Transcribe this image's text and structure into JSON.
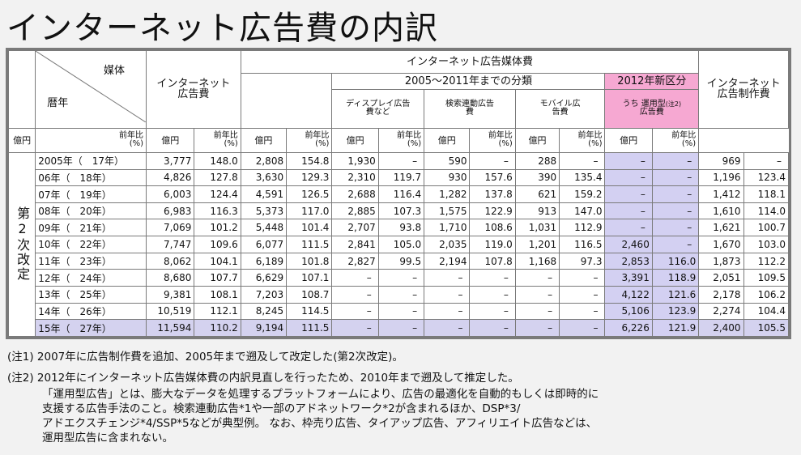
{
  "title": "インターネット広告費の内訳",
  "headers": {
    "media": "媒体",
    "year": "暦年",
    "internet_total": "インターネット広告費",
    "media_group": "インターネット広告媒体費",
    "period_group": "2005〜2011年までの分類",
    "new_group": "2012年新区分",
    "display": "ディスプレイ広告費など",
    "search": "検索連動広告費",
    "mobile": "モバイル広告費",
    "unyou": "うち 運用型",
    "unyou_note": "(注2)",
    "unyou_suffix": "広告費",
    "production": "インターネット広告制作費",
    "unit_oku": "億円",
    "unit_yoy": "前年比",
    "unit_pct": "(%)",
    "revision": "第2次改定"
  },
  "chart_data": {
    "type": "table",
    "columns": [
      "インターネット広告費 億円",
      "前年比(%)",
      "インターネット広告媒体費 億円",
      "前年比(%)",
      "ディスプレイ広告費など 億円",
      "前年比(%)",
      "検索連動広告費 億円",
      "前年比(%)",
      "モバイル広告費 億円",
      "前年比(%)",
      "うち運用型広告費 億円",
      "前年比(%)",
      "インターネット広告制作費 億円",
      "前年比(%)"
    ],
    "rows": [
      {
        "year": "2005年（　17年）",
        "values": [
          "3,777",
          "148.0",
          "2,808",
          "154.8",
          "1,930",
          "–",
          "590",
          "–",
          "288",
          "–",
          "–",
          "–",
          "969",
          "–"
        ]
      },
      {
        "year": "06年（　18年）",
        "values": [
          "4,826",
          "127.8",
          "3,630",
          "129.3",
          "2,310",
          "119.7",
          "930",
          "157.6",
          "390",
          "135.4",
          "–",
          "–",
          "1,196",
          "123.4"
        ]
      },
      {
        "year": "07年（　19年）",
        "values": [
          "6,003",
          "124.4",
          "4,591",
          "126.5",
          "2,688",
          "116.4",
          "1,282",
          "137.8",
          "621",
          "159.2",
          "–",
          "–",
          "1,412",
          "118.1"
        ]
      },
      {
        "year": "08年（　20年）",
        "values": [
          "6,983",
          "116.3",
          "5,373",
          "117.0",
          "2,885",
          "107.3",
          "1,575",
          "122.9",
          "913",
          "147.0",
          "–",
          "–",
          "1,610",
          "114.0"
        ]
      },
      {
        "year": "09年（　21年）",
        "values": [
          "7,069",
          "101.2",
          "5,448",
          "101.4",
          "2,707",
          "93.8",
          "1,710",
          "108.6",
          "1,031",
          "112.9",
          "–",
          "–",
          "1,621",
          "100.7"
        ]
      },
      {
        "year": "10年（　22年）",
        "values": [
          "7,747",
          "109.6",
          "6,077",
          "111.5",
          "2,841",
          "105.0",
          "2,035",
          "119.0",
          "1,201",
          "116.5",
          "2,460",
          "–",
          "1,670",
          "103.0"
        ]
      },
      {
        "year": "11年（　23年）",
        "values": [
          "8,062",
          "104.1",
          "6,189",
          "101.8",
          "2,827",
          "99.5",
          "2,194",
          "107.8",
          "1,168",
          "97.3",
          "2,853",
          "116.0",
          "1,873",
          "112.2"
        ]
      },
      {
        "year": "12年（　24年）",
        "values": [
          "8,680",
          "107.7",
          "6,629",
          "107.1",
          "–",
          "–",
          "–",
          "–",
          "–",
          "–",
          "3,391",
          "118.9",
          "2,051",
          "109.5"
        ]
      },
      {
        "year": "13年（　25年）",
        "values": [
          "9,381",
          "108.1",
          "7,203",
          "108.7",
          "–",
          "–",
          "–",
          "–",
          "–",
          "–",
          "4,122",
          "121.6",
          "2,178",
          "106.2"
        ]
      },
      {
        "year": "14年（　26年）",
        "values": [
          "10,519",
          "112.1",
          "8,245",
          "114.5",
          "–",
          "–",
          "–",
          "–",
          "–",
          "–",
          "5,106",
          "123.9",
          "2,274",
          "104.4"
        ]
      },
      {
        "year": "15年（　27年）",
        "values": [
          "11,594",
          "110.2",
          "9,194",
          "111.5",
          "–",
          "–",
          "–",
          "–",
          "–",
          "–",
          "6,226",
          "121.9",
          "2,400",
          "105.5"
        ]
      }
    ]
  },
  "notes": [
    "(注1)  2007年に広告制作費を追加、2005年まで遡及して改定した(第2次改定)。",
    "(注2)  2012年にインターネット広告媒体費の内訳見直しを行ったため、2010年まで遡及して推定した。",
    "「運用型広告」とは、膨大なデータを処理するプラットフォームにより、広告の最適化を自動的もしくは即時的に",
    "支援する広告手法のこと。検索連動広告*1や一部のアドネットワーク*2が含まれるほか、DSP*3/",
    "アドエクスチェンジ*4/SSP*5などが典型例。 なお、枠売り広告、タイアップ広告、アフィリエイト広告などは、",
    "運用型広告に含まれない。"
  ]
}
